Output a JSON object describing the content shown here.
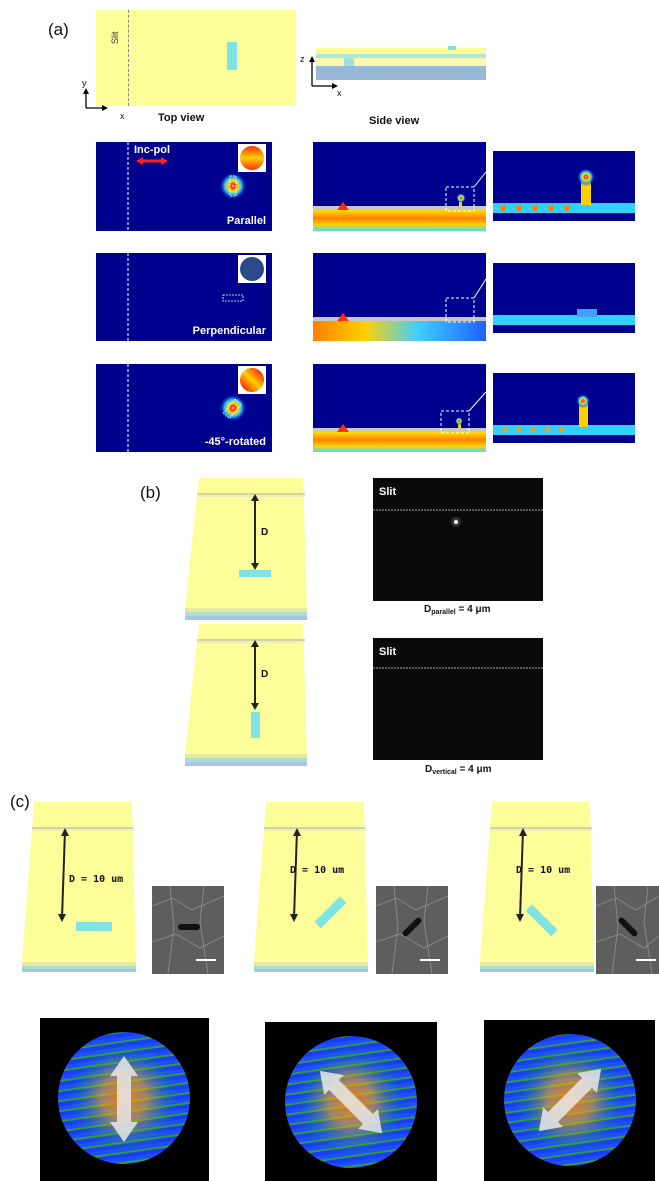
{
  "panel_labels": {
    "a": "(a)",
    "b": "(b)",
    "c": "(c)"
  },
  "part_a": {
    "top_view": {
      "caption": "Top view",
      "slit_label": "Slit",
      "axis_y": "y",
      "axis_x": "x"
    },
    "side_view": {
      "caption": "Side view",
      "axis_z": "z",
      "axis_x": "x"
    },
    "rows": [
      {
        "label": "Parallel",
        "inc_pol_label": "Inc-pol"
      },
      {
        "label": "Perpendicular"
      },
      {
        "label": "-45°-rotated"
      }
    ]
  },
  "part_b": {
    "d_label": "D",
    "slit_label": "Slit",
    "captions": [
      {
        "main": "D",
        "sub": "parallel",
        "rest": " = 4 μm"
      },
      {
        "main": "D",
        "sub": "vertical",
        "rest": " = 4 μm"
      }
    ]
  },
  "part_c": {
    "d_labels": [
      "D = 10 um",
      "D = 10 um",
      "D = 10 um"
    ]
  },
  "colors": {
    "substrate_yellow": "#fdfd9a",
    "antenna_cyan": "#7fe3e3",
    "field_blue": "#00008f",
    "field_hot": "#ff3300"
  }
}
